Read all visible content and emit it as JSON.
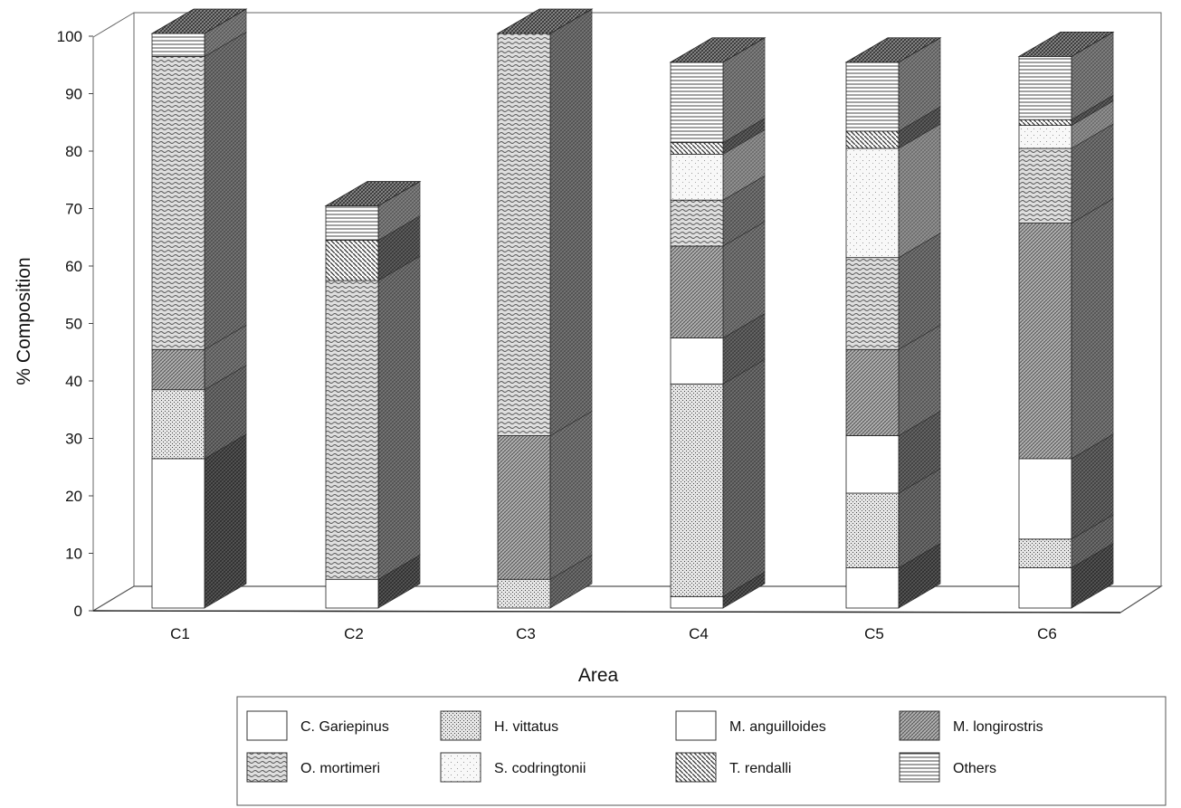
{
  "chart_data": {
    "type": "bar",
    "stacked": true,
    "style": "3d",
    "title": "",
    "xlabel": "Area",
    "ylabel": "% Composition",
    "ylim": [
      0,
      100
    ],
    "yticks": [
      0,
      10,
      20,
      30,
      40,
      50,
      60,
      70,
      80,
      90,
      100
    ],
    "grid": false,
    "legend_position": "bottom",
    "categories": [
      "C1",
      "C2",
      "C3",
      "C4",
      "C5",
      "C6"
    ],
    "series": [
      {
        "name": "C. Gariepinus",
        "values": [
          26,
          5,
          0,
          2,
          7,
          7
        ]
      },
      {
        "name": "H. vittatus",
        "values": [
          12,
          0,
          5,
          37,
          13,
          5
        ]
      },
      {
        "name": "M. anguilloides",
        "values": [
          0,
          0,
          0,
          8,
          10,
          14
        ]
      },
      {
        "name": "M. longirostris",
        "values": [
          7,
          0,
          25,
          16,
          15,
          41
        ]
      },
      {
        "name": "O. mortimeri",
        "values": [
          51,
          52,
          70,
          8,
          16,
          13
        ]
      },
      {
        "name": "S. codringtonii",
        "values": [
          0,
          0,
          0,
          8,
          19,
          4
        ]
      },
      {
        "name": "T. rendalli",
        "values": [
          0,
          7,
          0,
          2,
          3,
          1
        ]
      },
      {
        "name": "Others",
        "values": [
          4,
          6,
          0,
          14,
          12,
          11
        ]
      }
    ],
    "colors": {
      "front": [
        "#ffffff",
        "#b8b8b8",
        "#ffffff",
        "#a6a6a6",
        "#bdbdbd",
        "#f2f2f2",
        "#8c8c8c",
        "#d0d0d0"
      ],
      "side": [
        "#2a2a2a",
        "#5a5a5a",
        "#4a4a4a",
        "#6c6c6c",
        "#666666",
        "#9a9a9a",
        "#3c3c3c",
        "#7a7a7a"
      ]
    }
  }
}
